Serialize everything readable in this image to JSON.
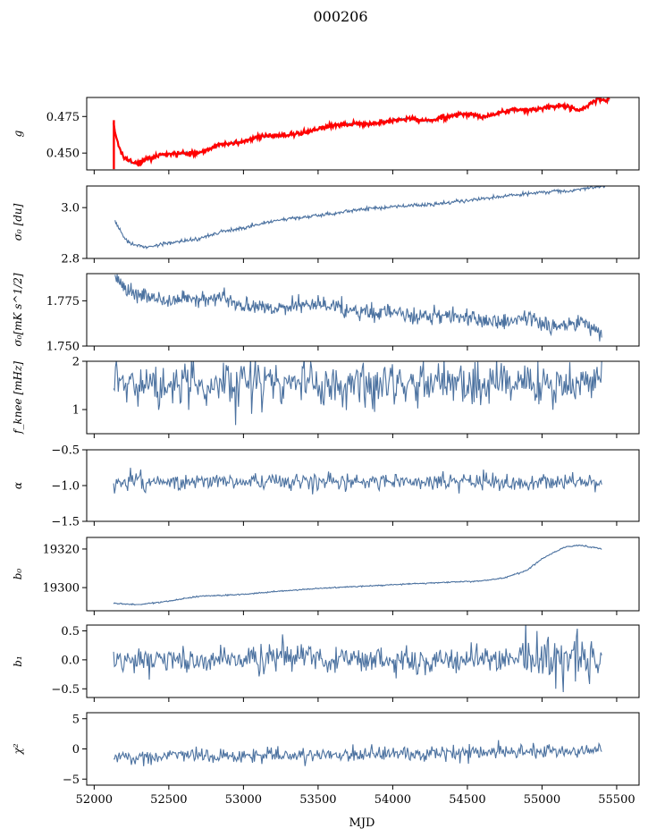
{
  "figure": {
    "title": "000206",
    "xlabel": "MJD"
  },
  "colors": {
    "series": "#4c72a0",
    "overlay": "#ff0000",
    "axes": "#000000"
  },
  "chart_data": [
    {
      "type": "line",
      "ylabel": "g",
      "xlim": [
        51950,
        55650
      ],
      "ylim": [
        0.4385,
        0.488
      ],
      "xticks": [
        52000,
        52500,
        53000,
        53500,
        54000,
        54500,
        55000,
        55500
      ],
      "yticks": [
        0.45,
        0.475
      ],
      "ytick_labels": [
        "0.450",
        "0.475"
      ],
      "x_start": 52130,
      "x_end": 55400,
      "series": [
        {
          "type": "smooth",
          "points": [
            [
              52130,
              0.47
            ],
            [
              52160,
              0.456
            ],
            [
              52200,
              0.447
            ],
            [
              52250,
              0.4435
            ],
            [
              52300,
              0.443
            ],
            [
              52350,
              0.4462
            ],
            [
              52450,
              0.4488
            ],
            [
              52600,
              0.4498
            ],
            [
              52700,
              0.4502
            ],
            [
              52850,
              0.456
            ],
            [
              52950,
              0.457
            ],
            [
              53100,
              0.461
            ],
            [
              53200,
              0.462
            ],
            [
              53300,
              0.462
            ],
            [
              53400,
              0.4635
            ],
            [
              53550,
              0.468
            ],
            [
              53700,
              0.47
            ],
            [
              53850,
              0.4695
            ],
            [
              54000,
              0.4725
            ],
            [
              54100,
              0.4735
            ],
            [
              54250,
              0.472
            ],
            [
              54400,
              0.476
            ],
            [
              54500,
              0.4765
            ],
            [
              54600,
              0.4745
            ],
            [
              54800,
              0.4795
            ],
            [
              54950,
              0.4795
            ],
            [
              55050,
              0.4815
            ],
            [
              55150,
              0.4825
            ],
            [
              55250,
              0.479
            ],
            [
              55300,
              0.482
            ],
            [
              55370,
              0.4865
            ],
            [
              55450,
              0.486
            ]
          ],
          "noise": 0.0004,
          "seed": 1
        },
        {
          "type": "overlay",
          "points": [
            [
              52130,
              0.47
            ],
            [
              52160,
              0.456
            ],
            [
              52200,
              0.447
            ],
            [
              52250,
              0.4435
            ],
            [
              52300,
              0.443
            ],
            [
              52350,
              0.4462
            ],
            [
              52450,
              0.4488
            ],
            [
              52600,
              0.4498
            ],
            [
              52700,
              0.4502
            ],
            [
              52850,
              0.456
            ],
            [
              52950,
              0.457
            ],
            [
              53100,
              0.461
            ],
            [
              53200,
              0.462
            ],
            [
              53300,
              0.462
            ],
            [
              53400,
              0.4635
            ],
            [
              53550,
              0.468
            ],
            [
              53700,
              0.47
            ],
            [
              53850,
              0.4695
            ],
            [
              54000,
              0.4725
            ],
            [
              54100,
              0.4735
            ],
            [
              54250,
              0.472
            ],
            [
              54400,
              0.476
            ],
            [
              54500,
              0.4765
            ],
            [
              54600,
              0.4745
            ],
            [
              54800,
              0.4795
            ],
            [
              54950,
              0.4795
            ],
            [
              55050,
              0.4815
            ],
            [
              55150,
              0.4825
            ],
            [
              55250,
              0.479
            ],
            [
              55300,
              0.482
            ],
            [
              55370,
              0.4865
            ],
            [
              55450,
              0.486
            ]
          ],
          "noise": 0.0008,
          "seed": 2
        }
      ]
    },
    {
      "type": "line",
      "ylabel": "σ₀ [du]",
      "xlim": [
        51950,
        55650
      ],
      "ylim": [
        2.8,
        3.085
      ],
      "yticks": [
        2.8,
        3.0
      ],
      "ytick_labels": [
        "2.8",
        "3.0"
      ],
      "series": [
        {
          "type": "smooth",
          "points": [
            [
              52140,
              2.945
            ],
            [
              52200,
              2.882
            ],
            [
              52250,
              2.855
            ],
            [
              52350,
              2.845
            ],
            [
              52500,
              2.86
            ],
            [
              52700,
              2.878
            ],
            [
              52850,
              2.905
            ],
            [
              53000,
              2.92
            ],
            [
              53250,
              2.952
            ],
            [
              53500,
              2.968
            ],
            [
              53700,
              2.986
            ],
            [
              54000,
              3.003
            ],
            [
              54300,
              3.015
            ],
            [
              54500,
              3.028
            ],
            [
              54800,
              3.048
            ],
            [
              55000,
              3.06
            ],
            [
              55100,
              3.066
            ],
            [
              55200,
              3.064
            ],
            [
              55300,
              3.075
            ],
            [
              55420,
              3.085
            ]
          ],
          "noise": 0.0035,
          "seed": 3
        }
      ]
    },
    {
      "type": "line",
      "ylabel": "σ₀[mK s^1/2]",
      "xlim": [
        51950,
        55650
      ],
      "ylim": [
        1.75,
        1.79
      ],
      "yticks": [
        1.75,
        1.775
      ],
      "ytick_labels": [
        "1.750",
        "1.775"
      ],
      "series": [
        {
          "type": "smooth",
          "points": [
            [
              52140,
              1.79
            ],
            [
              52200,
              1.782
            ],
            [
              52300,
              1.778
            ],
            [
              52500,
              1.775
            ],
            [
              52700,
              1.776
            ],
            [
              52900,
              1.776
            ],
            [
              53000,
              1.772
            ],
            [
              53300,
              1.771
            ],
            [
              53500,
              1.774
            ],
            [
              53700,
              1.769
            ],
            [
              54000,
              1.768
            ],
            [
              54200,
              1.766
            ],
            [
              54400,
              1.767
            ],
            [
              54600,
              1.764
            ],
            [
              54800,
              1.763
            ],
            [
              54900,
              1.766
            ],
            [
              55000,
              1.762
            ],
            [
              55200,
              1.761
            ],
            [
              55300,
              1.763
            ],
            [
              55400,
              1.756
            ]
          ],
          "noise": 0.0022,
          "seed": 4
        }
      ]
    },
    {
      "type": "line",
      "ylabel": "f_knee [mHz]",
      "xlim": [
        51950,
        55650
      ],
      "ylim": [
        0.5,
        2.0
      ],
      "yticks": [
        1,
        2
      ],
      "ytick_labels": [
        "1",
        "2"
      ],
      "series": [
        {
          "type": "noise",
          "mean": 1.55,
          "amp": 0.24,
          "clipMax": 2.0,
          "seed": 5,
          "n": 520
        }
      ]
    },
    {
      "type": "line",
      "ylabel": "α",
      "xlim": [
        51950,
        55650
      ],
      "ylim": [
        -1.5,
        -0.5
      ],
      "yticks": [
        -1.5,
        -1.0,
        -0.5
      ],
      "ytick_labels": [
        "−1.5",
        "−1.0",
        "−0.5"
      ],
      "series": [
        {
          "type": "noise",
          "mean": -0.95,
          "amp": 0.06,
          "seed": 6,
          "n": 520
        }
      ]
    },
    {
      "type": "line",
      "ylabel": "b₀",
      "xlim": [
        51950,
        55650
      ],
      "ylim": [
        19288,
        19326
      ],
      "yticks": [
        19300,
        19320
      ],
      "ytick_labels": [
        "19300",
        "19320"
      ],
      "series": [
        {
          "type": "smooth",
          "points": [
            [
              52130,
              19292
            ],
            [
              52200,
              19291.5
            ],
            [
              52300,
              19291.2
            ],
            [
              52500,
              19293
            ],
            [
              52700,
              19295.5
            ],
            [
              53000,
              19296.5
            ],
            [
              53300,
              19298.5
            ],
            [
              53600,
              19300
            ],
            [
              54000,
              19301.5
            ],
            [
              54300,
              19302.5
            ],
            [
              54600,
              19303.5
            ],
            [
              54750,
              19305
            ],
            [
              54900,
              19309
            ],
            [
              55000,
              19315
            ],
            [
              55150,
              19321
            ],
            [
              55250,
              19322
            ],
            [
              55400,
              19320
            ]
          ],
          "noise": 0.15,
          "seed": 7
        }
      ]
    },
    {
      "type": "line",
      "ylabel": "b₁",
      "xlim": [
        51950,
        55650
      ],
      "ylim": [
        -0.65,
        0.6
      ],
      "yticks": [
        -0.5,
        0.0,
        0.5
      ],
      "ytick_labels": [
        "−0.5",
        "0.0",
        "0.5"
      ],
      "series": [
        {
          "type": "noise",
          "mean": 0.0,
          "amp": 0.12,
          "seed": 8,
          "n": 520,
          "tail": true
        }
      ]
    },
    {
      "type": "line",
      "ylabel": "χ²",
      "xlabel": "MJD",
      "xlim": [
        51950,
        55650
      ],
      "ylim": [
        -6,
        6
      ],
      "yticks": [
        -5,
        0,
        5
      ],
      "ytick_labels": [
        "−5",
        "0",
        "5"
      ],
      "xtick_labels": [
        "52000",
        "52500",
        "53000",
        "53500",
        "54000",
        "54500",
        "55000",
        "55500"
      ],
      "series": [
        {
          "type": "noise",
          "mean": -1.4,
          "amp": 0.6,
          "trend": 1.1,
          "seed": 9,
          "n": 520
        }
      ]
    }
  ]
}
